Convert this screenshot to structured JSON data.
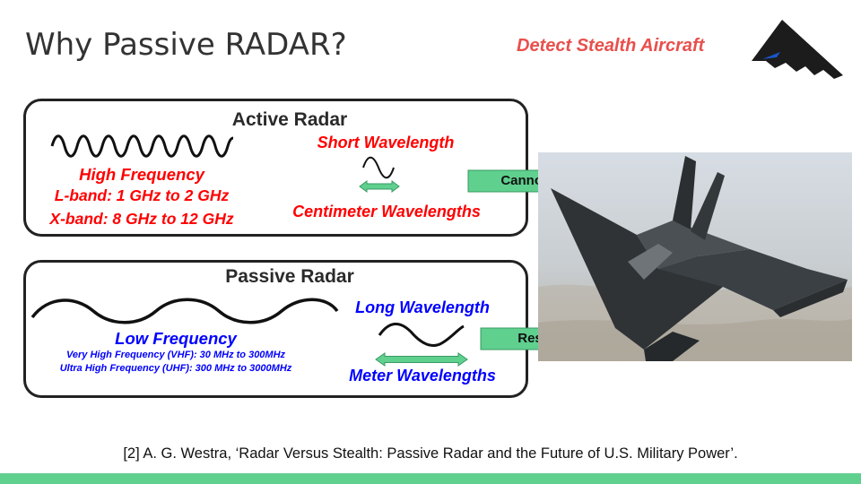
{
  "slide": {
    "title": "Why Passive RADAR?",
    "tagline": "Detect Stealth Aircraft",
    "citation": "[2] A. G. Westra, ‘Radar Versus Stealth: Passive Radar and the Future of U.S. Military Power’."
  },
  "active": {
    "title": "Active Radar",
    "frequency_label": "High Frequency",
    "bands": [
      "L-band: 1 GHz to 2 GHz",
      "X-band: 8 GHz to 12 GHz"
    ],
    "wavelength_label": "Short Wavelength",
    "wavelength_scale": "Centimeter Wavelengths",
    "arrow_label": "Cannot Resonate"
  },
  "passive": {
    "title": "Passive Radar",
    "frequency_label": "Low Frequency",
    "bands": [
      "Very High Frequency (VHF): 30 MHz to 300MHz",
      "Ultra High Frequency (UHF): 300 MHz to 3000MHz"
    ],
    "wavelength_label": "Long Wavelength",
    "wavelength_scale": "Meter Wavelengths",
    "arrow_label": "Resonate"
  },
  "colors": {
    "accent_red": "#ff0000",
    "accent_blue": "#0000ff",
    "tagline": "#e8504d",
    "arrow_fill": "#5fd08e",
    "footer_bar": "#5fd08e"
  },
  "icons": {
    "logo": "stealth-bomber-icon",
    "photo": "stealth-fighter-photo"
  }
}
